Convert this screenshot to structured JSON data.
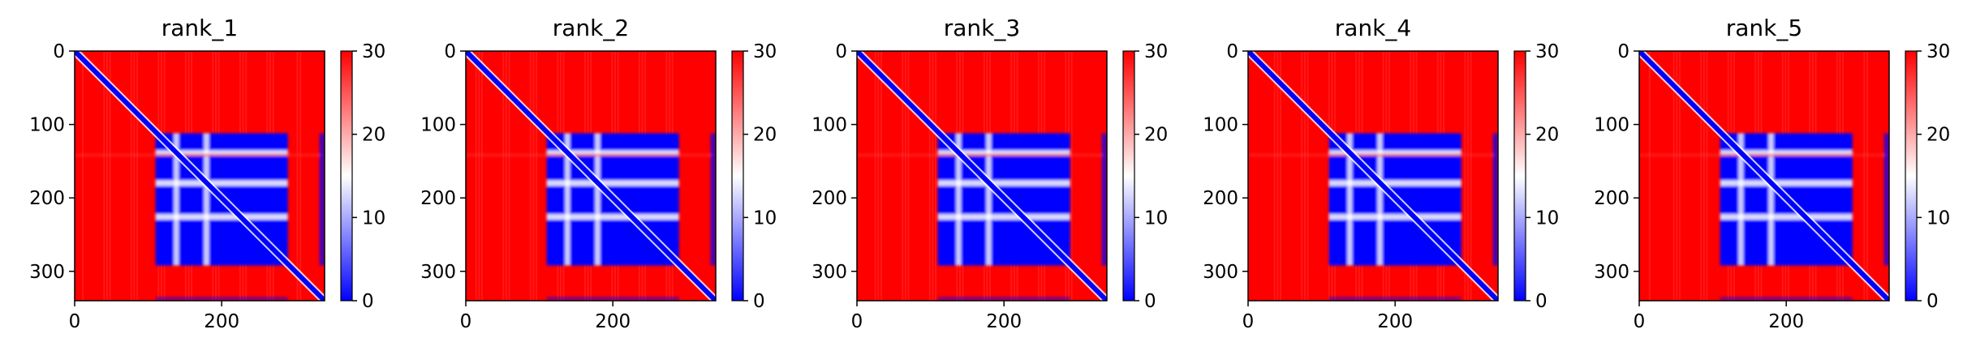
{
  "figure": {
    "colormap": [
      "#0000ff",
      "#ffffff",
      "#ff0000"
    ],
    "panel_background": "#ff0000",
    "axis_color": "#000000"
  },
  "chart_data": [
    {
      "type": "heatmap",
      "title": "rank_1",
      "x_ticks": [
        0,
        200
      ],
      "y_ticks": [
        0,
        100,
        200,
        300
      ],
      "xlim": [
        0,
        340
      ],
      "ylim": [
        340,
        0
      ],
      "colorbar": {
        "range": [
          0,
          30
        ],
        "ticks": [
          0,
          10,
          20,
          30
        ]
      },
      "blocks": [
        120,
        160,
        200,
        250,
        290
      ],
      "tail_residues": [
        330,
        340
      ]
    },
    {
      "type": "heatmap",
      "title": "rank_2",
      "x_ticks": [
        0,
        200
      ],
      "y_ticks": [
        0,
        100,
        200,
        300
      ],
      "xlim": [
        0,
        340
      ],
      "ylim": [
        340,
        0
      ],
      "colorbar": {
        "range": [
          0,
          30
        ],
        "ticks": [
          0,
          10,
          20,
          30
        ]
      },
      "blocks": [
        120,
        160,
        200,
        250,
        290
      ],
      "tail_residues": [
        330,
        340
      ]
    },
    {
      "type": "heatmap",
      "title": "rank_3",
      "x_ticks": [
        0,
        200
      ],
      "y_ticks": [
        0,
        100,
        200,
        300
      ],
      "xlim": [
        0,
        340
      ],
      "ylim": [
        340,
        0
      ],
      "colorbar": {
        "range": [
          0,
          30
        ],
        "ticks": [
          0,
          10,
          20,
          30
        ]
      },
      "blocks": [
        120,
        160,
        200,
        250,
        290
      ],
      "tail_residues": [
        330,
        340
      ]
    },
    {
      "type": "heatmap",
      "title": "rank_4",
      "x_ticks": [
        0,
        200
      ],
      "y_ticks": [
        0,
        100,
        200,
        300
      ],
      "xlim": [
        0,
        340
      ],
      "ylim": [
        340,
        0
      ],
      "colorbar": {
        "range": [
          0,
          30
        ],
        "ticks": [
          0,
          10,
          20,
          30
        ]
      },
      "blocks": [
        120,
        160,
        200,
        250,
        290
      ],
      "tail_residues": [
        330,
        340
      ]
    },
    {
      "type": "heatmap",
      "title": "rank_5",
      "x_ticks": [
        0,
        200
      ],
      "y_ticks": [
        0,
        100,
        200,
        300
      ],
      "xlim": [
        0,
        340
      ],
      "ylim": [
        340,
        0
      ],
      "colorbar": {
        "range": [
          0,
          30
        ],
        "ticks": [
          0,
          10,
          20,
          30
        ]
      },
      "blocks": [
        120,
        160,
        200,
        250,
        290
      ],
      "tail_residues": [
        330,
        340
      ]
    }
  ]
}
